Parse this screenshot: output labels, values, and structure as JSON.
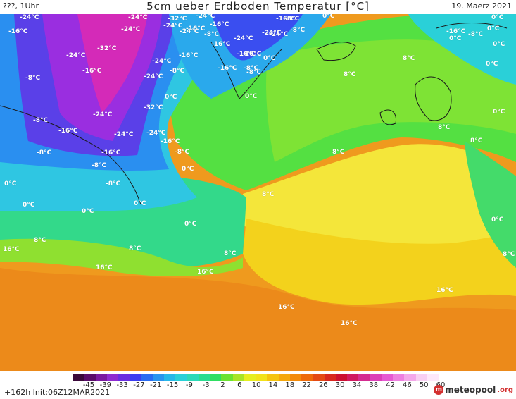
{
  "header": {
    "left": "???, 1Uhr",
    "title": "5cm ueber Erdboden Temperatur [°C]",
    "date": "19. Maerz 2021"
  },
  "map_labels": {
    "l1": "-24°C",
    "l2": "-32°C",
    "l3": "-24°C",
    "l4": "-24°C",
    "l5": "-24°C",
    "l6": "-16°C",
    "l7": "-24°C",
    "l8": "-24°C",
    "l9": "-32°C",
    "l10": "-24°C",
    "l11": "-24°C",
    "l12": "-16°C",
    "l13": "-8°C",
    "l14": "-16°C",
    "l15": "-24°C",
    "l16": "-24°C",
    "l17": "-8°C",
    "l18": "-16°C",
    "l19": "-8°C",
    "l20": "0°C",
    "l21": "-8°C",
    "l22": "-16°C",
    "l23": "-24°C",
    "l24": "-8°C",
    "l25": "-16°C",
    "l26": "-24°C",
    "l27": "-32°C",
    "l28": "-16°C",
    "l29": "-8°C",
    "l30": "-16°C",
    "l31": "-24°C",
    "l32": "-24°C",
    "l33": "-16°C",
    "l34": "-8°C",
    "l35": "-8°C",
    "l36": "-16°C",
    "l37": "-8°C",
    "l38": "0°C",
    "l39": "0°C",
    "l40": "0°C",
    "l41": "0°C",
    "l42": "0°C",
    "l43": "0°C",
    "l44": "0°C",
    "l45": "-8°C",
    "l46": "0°C",
    "l47": "-8°C",
    "l48": "8°C",
    "l49": "8°C",
    "l50": "8°C",
    "l51": "8°C",
    "l52": "8°C",
    "l53": "8°C",
    "l54": "8°C",
    "l55": "16°C",
    "l56": "16°C",
    "l57": "16°C",
    "l58": "16°C",
    "l59": "16°C",
    "l60": "16°C",
    "l61": "8°C",
    "l62": "0°C",
    "l63": "-16°C",
    "l64": "-16°C",
    "l65": "0°C",
    "l66": "0°C",
    "l67": "0°C",
    "l68": "0°C",
    "l69": "0°C",
    "l70": "0°C",
    "l71": "-8°C",
    "l72": "-16°C",
    "l73": "-8°C",
    "l74": "-24°C",
    "l75": "-16°C",
    "l76": "0°C",
    "l77": "8°C",
    "l78": "8°C"
  },
  "legend": {
    "colors": [
      "#3a0a3a",
      "#5a0d6a",
      "#7a1aa0",
      "#8f2bd0",
      "#6a2ee0",
      "#3b3ef0",
      "#2a6cf0",
      "#2a95ee",
      "#27b8e8",
      "#2ad0d8",
      "#2cd9b8",
      "#2bdc90",
      "#2fde62",
      "#6be232",
      "#a8e428",
      "#e6ee20",
      "#f2e21a",
      "#f5c40f",
      "#f5a80c",
      "#f38a0a",
      "#ee6a0a",
      "#e44a14",
      "#d8281e",
      "#cc1030",
      "#d01a60",
      "#d42c90",
      "#dc40b8",
      "#e65ad2",
      "#ee80e0",
      "#f4a8ea",
      "#f8cff2",
      "#fde8fa"
    ],
    "ticks": [
      "-45",
      "-39",
      "-33",
      "-27",
      "-21",
      "-15",
      "-9",
      "-3",
      "2",
      "6",
      "10",
      "14",
      "18",
      "22",
      "26",
      "30",
      "34",
      "38",
      "42",
      "46",
      "50",
      "60"
    ]
  },
  "footer": {
    "init": "+162h  Init:06Z12MAR2021",
    "logo_text": "meteopool",
    "logo_ext": ".org"
  }
}
